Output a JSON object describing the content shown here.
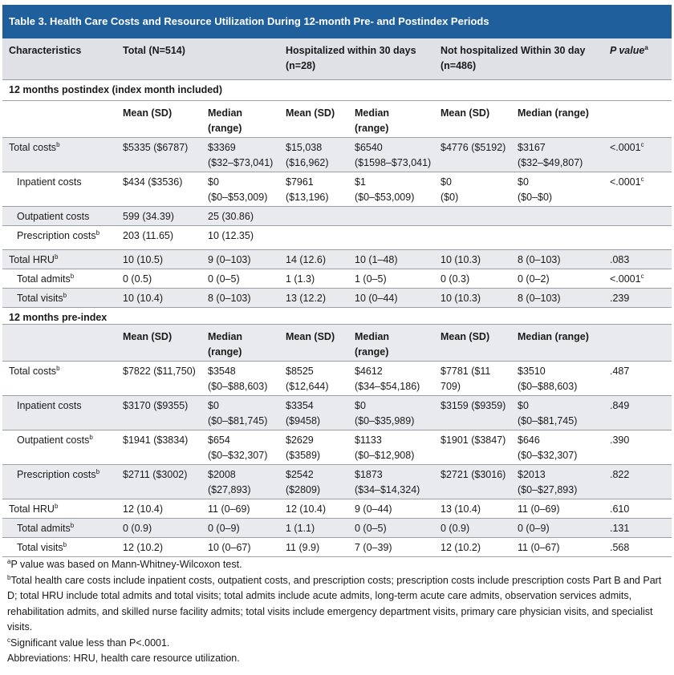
{
  "title": "Table 3. Health Care Costs and Resource Utilization During 12-month Pre- and Postindex Periods",
  "header": {
    "characteristics": "Characteristics",
    "total": "Total (N=514)",
    "hosp_line1": "Hospitalized within 30 days",
    "hosp_line2": "(n=28)",
    "nothosp_line1": "Not hospitalized Within 30 day",
    "nothosp_line2": "(n=486)",
    "pvalue": "P value",
    "pvalue_sup": "a"
  },
  "sections": [
    {
      "title": "12 months postindex (index month included)",
      "sub": {
        "mean": "Mean (SD)",
        "median1": "Median",
        "median2": "(range)",
        "median_range": "Median (range)"
      },
      "rows": [
        {
          "label": "Total costs",
          "sup": "b",
          "c": [
            [
              "$5335 ($6787)"
            ],
            [
              "$3369",
              "($32–$73,041)"
            ],
            [
              "$15,038",
              "($16,962)"
            ],
            [
              "$6540",
              "($1598–$73,041)"
            ],
            [
              "$4776 ($5192)"
            ],
            [
              "$3167",
              "($32–$49,807)"
            ]
          ],
          "p": "<.0001",
          "psup": "c"
        },
        {
          "label": "Inpatient costs",
          "sup": "",
          "c": [
            [
              "$434 ($3536)"
            ],
            [
              "$0",
              "($0–$53,009)"
            ],
            [
              "$7961",
              "($13,196)"
            ],
            [
              "$1",
              "($0–$53,009)"
            ],
            [
              "$0",
              "($0)"
            ],
            [
              "$0",
              "($0–$0)"
            ]
          ],
          "p": "<.0001",
          "psup": "c"
        },
        {
          "label": "Outpatient costs",
          "sup": "",
          "c": [
            [
              "599 (34.39)"
            ],
            [
              "25 (30.86)"
            ],
            [
              ""
            ],
            [
              ""
            ],
            [
              ""
            ],
            [
              ""
            ]
          ],
          "p": "",
          "psup": ""
        },
        {
          "label": "Prescription costs",
          "sup": "b",
          "c": [
            [
              "203 (11.65)"
            ],
            [
              "10 (12.35)"
            ],
            [
              ""
            ],
            [
              ""
            ],
            [
              ""
            ],
            [
              ""
            ]
          ],
          "p": "",
          "psup": ""
        },
        {
          "label": "Total HRU",
          "sup": "b",
          "c": [
            [
              "10 (10.5)"
            ],
            [
              "9 (0–103)"
            ],
            [
              "14 (12.6)"
            ],
            [
              "10 (1–48)"
            ],
            [
              "10 (10.3)"
            ],
            [
              "8 (0–103)"
            ]
          ],
          "p": ".083",
          "psup": ""
        },
        {
          "label": "Total admits",
          "sup": "b",
          "c": [
            [
              "0 (0.5)"
            ],
            [
              "0 (0–5)"
            ],
            [
              "1 (1.3)"
            ],
            [
              "1 (0–5)"
            ],
            [
              "0 (0.3)"
            ],
            [
              "0 (0–2)"
            ]
          ],
          "p": "<.0001",
          "psup": "c"
        },
        {
          "label": "Total visits",
          "sup": "b",
          "c": [
            [
              "10 (10.4)"
            ],
            [
              "8 (0–103)"
            ],
            [
              "13 (12.2)"
            ],
            [
              "10 (0–44)"
            ],
            [
              "10 (10.3)"
            ],
            [
              "8 (0–103)"
            ]
          ],
          "p": ".239",
          "psup": ""
        }
      ]
    },
    {
      "title": "12 months pre-index",
      "sub": {
        "mean": "Mean (SD)",
        "median1": "Median",
        "median2": "(range)",
        "median_range": "Median (range)"
      },
      "rows": [
        {
          "label": "Total costs",
          "sup": "b",
          "c": [
            [
              "$7822 ($11,750)"
            ],
            [
              "$3548",
              "($0–$88,603)"
            ],
            [
              "$8525",
              "($12,644)"
            ],
            [
              "$4612",
              "($34–$54,186)"
            ],
            [
              "$7781 ($11",
              "709)"
            ],
            [
              "$3510",
              "($0–$88,603)"
            ]
          ],
          "p": ".487",
          "psup": ""
        },
        {
          "label": "Inpatient costs",
          "sup": "",
          "c": [
            [
              "$3170 ($9355)"
            ],
            [
              "$0",
              "($0–$81,745)"
            ],
            [
              "$3354",
              "($9458)"
            ],
            [
              "$0",
              "($0–$35,989)"
            ],
            [
              "$3159 ($9359)"
            ],
            [
              "$0",
              "($0–$81,745)"
            ]
          ],
          "p": ".849",
          "psup": ""
        },
        {
          "label": "Outpatient costs",
          "sup": "b",
          "c": [
            [
              "$1941 ($3834)"
            ],
            [
              "$654",
              "($0–$32,307)"
            ],
            [
              "$2629",
              "($3589)"
            ],
            [
              "$1133",
              "($0–$12,908)"
            ],
            [
              "$1901 ($3847)"
            ],
            [
              "$646",
              "($0–$32,307)"
            ]
          ],
          "p": ".390",
          "psup": ""
        },
        {
          "label": "Prescription costs",
          "sup": "b",
          "c": [
            [
              "$2711 ($3002)"
            ],
            [
              "$2008",
              "($27,893)"
            ],
            [
              "$2542",
              "($2809)"
            ],
            [
              "$1873",
              "($34–$14,324)"
            ],
            [
              "$2721 ($3016)"
            ],
            [
              "$2013",
              "($0–$27,893)"
            ]
          ],
          "p": ".822",
          "psup": ""
        },
        {
          "label": "Total HRU",
          "sup": "b",
          "c": [
            [
              "12 (10.4)"
            ],
            [
              "11 (0–69)"
            ],
            [
              "12 (10.4)"
            ],
            [
              "9 (0–44)"
            ],
            [
              "13 (10.4)"
            ],
            [
              "11 (0–69)"
            ]
          ],
          "p": ".610",
          "psup": ""
        },
        {
          "label": "Total admits",
          "sup": "b",
          "c": [
            [
              "0 (0.9)"
            ],
            [
              "0 (0–9)"
            ],
            [
              "1 (1.1)"
            ],
            [
              "0 (0–5)"
            ],
            [
              "0 (0.9)"
            ],
            [
              "0 (0–9)"
            ]
          ],
          "p": ".131",
          "psup": ""
        },
        {
          "label": "Total visits",
          "sup": "b",
          "c": [
            [
              "12 (10.2)"
            ],
            [
              "10 (0–67)"
            ],
            [
              "11 (9.9)"
            ],
            [
              "7 (0–39)"
            ],
            [
              "12 (10.2)"
            ],
            [
              "11 (0–67)"
            ]
          ],
          "p": ".568",
          "psup": ""
        }
      ]
    }
  ],
  "footnotes": {
    "a_sup": "a",
    "a": "P value was based on Mann-Whitney-Wilcoxon test.",
    "b_sup": "b",
    "b": "Total health care costs include inpatient costs, outpatient costs, and prescription costs; prescription costs include prescription costs Part B and Part D; total HRU include total admits and total visits; total admits include acute admits, long-term acute care admits, observation services admits, rehabilitation admits, and skilled nurse facility admits; total visits include emergency department visits, primary care physician visits, and specialist visits.",
    "c_sup": "c",
    "c": "Significant value less than P<.0001.",
    "abbrev": "Abbreviations: HRU, health care resource utilization."
  },
  "colors": {
    "title_bg": "#1f5f9c",
    "shade": "#e9eaee",
    "rule": "#9aa0a8"
  }
}
